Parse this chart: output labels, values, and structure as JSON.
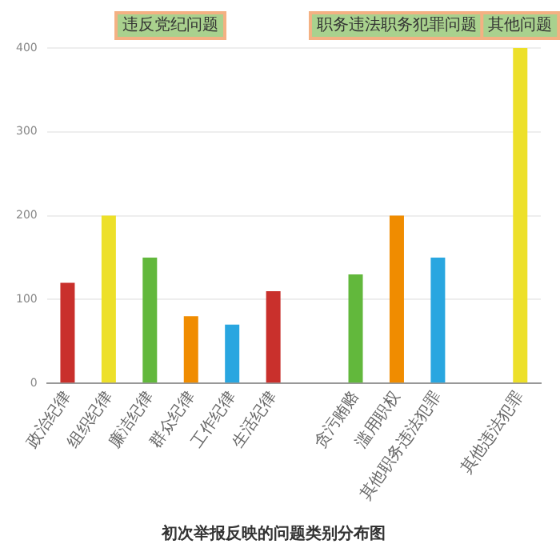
{
  "chart_data": {
    "type": "bar",
    "title": "初次举报反映的问题类别分布图",
    "categories": [
      "政治纪律",
      "组织纪律",
      "廉洁纪律",
      "群众纪律",
      "工作纪律",
      "生活纪律",
      null,
      "贪污贿赂",
      "滥用职权",
      "其他职务违法犯罪",
      null,
      "其他违法犯罪"
    ],
    "values": [
      120,
      200,
      150,
      80,
      70,
      110,
      null,
      130,
      200,
      150,
      null,
      400
    ],
    "colors": [
      "#c9302c",
      "#ede029",
      "#62b83c",
      "#f08c00",
      "#29a6e0",
      "#c9302c",
      "#cccccc",
      "#62b83c",
      "#f08c00",
      "#29a6e0",
      "#cccccc",
      "#ede029"
    ],
    "ylim": [
      0,
      400
    ],
    "yticks": [
      0,
      100,
      200,
      300,
      400
    ],
    "grid": "y",
    "legend": false,
    "annotations": [
      "违反党纪问题",
      "职务违法职务犯罪问题",
      "其他问题"
    ]
  }
}
